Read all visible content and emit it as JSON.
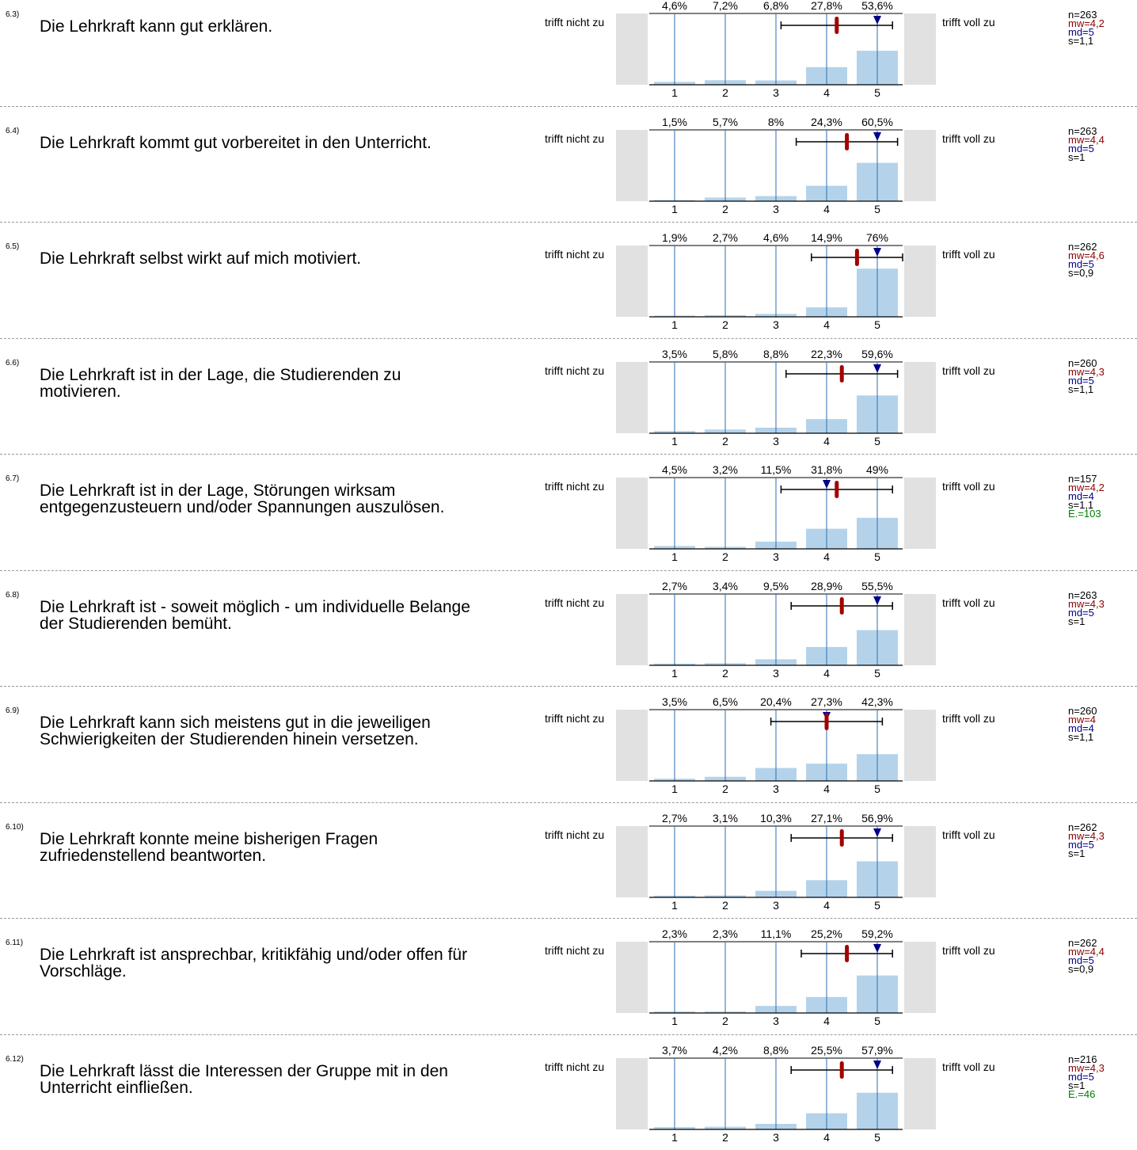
{
  "scale": {
    "left_label": "trifft nicht zu",
    "right_label": "trifft voll zu",
    "ticks": [
      "1",
      "2",
      "3",
      "4",
      "5"
    ]
  },
  "colors": {
    "bar": "#b4d3ea",
    "axis_line": "#2b6cb0",
    "mean": "#a40000",
    "median": "#00008b",
    "abstain": "#008000",
    "side_box": "#e1e1e1"
  },
  "chart_data": [
    {
      "type": "bar",
      "qnum": "6.3)",
      "text": "Die Lehrkraft kann gut erklären.",
      "categories": [
        "1",
        "2",
        "3",
        "4",
        "5"
      ],
      "values": [
        4.6,
        7.2,
        6.8,
        27.8,
        53.6
      ],
      "value_labels": [
        "4,6%",
        "7,2%",
        "6,8%",
        "27,8%",
        "53,6%"
      ],
      "n": "n=263",
      "mw": "mw=4,2",
      "md": "md=5",
      "s": "s=1,1",
      "e": "",
      "mean": 4.2,
      "median": 5,
      "sd": 1.1
    },
    {
      "type": "bar",
      "qnum": "6.4)",
      "text": "Die Lehrkraft kommt gut vorbereitet in den Unterricht.",
      "categories": [
        "1",
        "2",
        "3",
        "4",
        "5"
      ],
      "values": [
        1.5,
        5.7,
        8,
        24.3,
        60.5
      ],
      "value_labels": [
        "1,5%",
        "5,7%",
        "8%",
        "24,3%",
        "60,5%"
      ],
      "n": "n=263",
      "mw": "mw=4,4",
      "md": "md=5",
      "s": "s=1",
      "e": "",
      "mean": 4.4,
      "median": 5,
      "sd": 1.0
    },
    {
      "type": "bar",
      "qnum": "6.5)",
      "text": "Die Lehrkraft selbst wirkt auf mich motiviert.",
      "categories": [
        "1",
        "2",
        "3",
        "4",
        "5"
      ],
      "values": [
        1.9,
        2.7,
        4.6,
        14.9,
        76
      ],
      "value_labels": [
        "1,9%",
        "2,7%",
        "4,6%",
        "14,9%",
        "76%"
      ],
      "n": "n=262",
      "mw": "mw=4,6",
      "md": "md=5",
      "s": "s=0,9",
      "e": "",
      "mean": 4.6,
      "median": 5,
      "sd": 0.9
    },
    {
      "type": "bar",
      "qnum": "6.6)",
      "text": "Die Lehrkraft ist in der Lage, die Studierenden zu motivieren.",
      "categories": [
        "1",
        "2",
        "3",
        "4",
        "5"
      ],
      "values": [
        3.5,
        5.8,
        8.8,
        22.3,
        59.6
      ],
      "value_labels": [
        "3,5%",
        "5,8%",
        "8,8%",
        "22,3%",
        "59,6%"
      ],
      "n": "n=260",
      "mw": "mw=4,3",
      "md": "md=5",
      "s": "s=1,1",
      "e": "",
      "mean": 4.3,
      "median": 5,
      "sd": 1.1
    },
    {
      "type": "bar",
      "qnum": "6.7)",
      "text": "Die Lehrkraft ist in der Lage, Störungen wirksam entgegenzusteuern und/oder Spannungen auszulösen.",
      "categories": [
        "1",
        "2",
        "3",
        "4",
        "5"
      ],
      "values": [
        4.5,
        3.2,
        11.5,
        31.8,
        49
      ],
      "value_labels": [
        "4,5%",
        "3,2%",
        "11,5%",
        "31,8%",
        "49%"
      ],
      "n": "n=157",
      "mw": "mw=4,2",
      "md": "md=4",
      "s": "s=1,1",
      "e": "E.=103",
      "mean": 4.2,
      "median": 4,
      "sd": 1.1
    },
    {
      "type": "bar",
      "qnum": "6.8)",
      "text": "Die Lehrkraft ist - soweit möglich - um individuelle Belange der Studierenden bemüht.",
      "categories": [
        "1",
        "2",
        "3",
        "4",
        "5"
      ],
      "values": [
        2.7,
        3.4,
        9.5,
        28.9,
        55.5
      ],
      "value_labels": [
        "2,7%",
        "3,4%",
        "9,5%",
        "28,9%",
        "55,5%"
      ],
      "n": "n=263",
      "mw": "mw=4,3",
      "md": "md=5",
      "s": "s=1",
      "e": "",
      "mean": 4.3,
      "median": 5,
      "sd": 1.0
    },
    {
      "type": "bar",
      "qnum": "6.9)",
      "text": "Die Lehrkraft kann sich meistens gut in die jeweiligen Schwierigkeiten der Studierenden hinein versetzen.",
      "categories": [
        "1",
        "2",
        "3",
        "4",
        "5"
      ],
      "values": [
        3.5,
        6.5,
        20.4,
        27.3,
        42.3
      ],
      "value_labels": [
        "3,5%",
        "6,5%",
        "20,4%",
        "27,3%",
        "42,3%"
      ],
      "n": "n=260",
      "mw": "mw=4",
      "md": "md=4",
      "s": "s=1,1",
      "e": "",
      "mean": 4.0,
      "median": 4,
      "sd": 1.1
    },
    {
      "type": "bar",
      "qnum": "6.10)",
      "text": "Die Lehrkraft konnte meine bisherigen Fragen zufriedenstellend beantworten.",
      "categories": [
        "1",
        "2",
        "3",
        "4",
        "5"
      ],
      "values": [
        2.7,
        3.1,
        10.3,
        27.1,
        56.9
      ],
      "value_labels": [
        "2,7%",
        "3,1%",
        "10,3%",
        "27,1%",
        "56,9%"
      ],
      "n": "n=262",
      "mw": "mw=4,3",
      "md": "md=5",
      "s": "s=1",
      "e": "",
      "mean": 4.3,
      "median": 5,
      "sd": 1.0
    },
    {
      "type": "bar",
      "qnum": "6.11)",
      "text": "Die Lehrkraft ist ansprechbar, kritikfähig und/oder offen für Vorschläge.",
      "categories": [
        "1",
        "2",
        "3",
        "4",
        "5"
      ],
      "values": [
        2.3,
        2.3,
        11.1,
        25.2,
        59.2
      ],
      "value_labels": [
        "2,3%",
        "2,3%",
        "11,1%",
        "25,2%",
        "59,2%"
      ],
      "n": "n=262",
      "mw": "mw=4,4",
      "md": "md=5",
      "s": "s=0,9",
      "e": "",
      "mean": 4.4,
      "median": 5,
      "sd": 0.9
    },
    {
      "type": "bar",
      "qnum": "6.12)",
      "text": "Die Lehrkraft lässt die Interessen der Gruppe mit in den Unterricht einfließen.",
      "categories": [
        "1",
        "2",
        "3",
        "4",
        "5"
      ],
      "values": [
        3.7,
        4.2,
        8.8,
        25.5,
        57.9
      ],
      "value_labels": [
        "3,7%",
        "4,2%",
        "8,8%",
        "25,5%",
        "57,9%"
      ],
      "n": "n=216",
      "mw": "mw=4,3",
      "md": "md=5",
      "s": "s=1",
      "e": "E.=46",
      "mean": 4.3,
      "median": 5,
      "sd": 1.0
    }
  ]
}
